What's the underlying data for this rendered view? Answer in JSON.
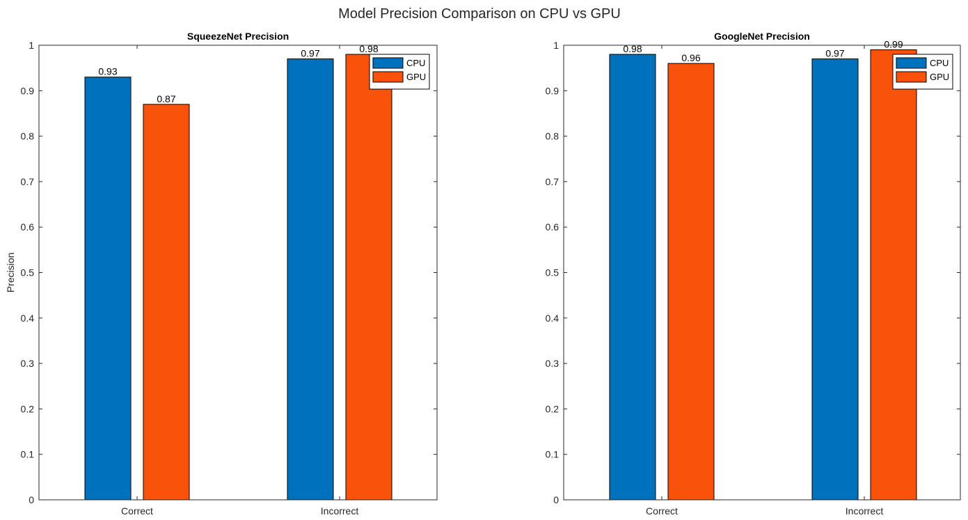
{
  "figure": {
    "title": "Model Precision Comparison on CPU vs GPU"
  },
  "colors": {
    "cpu": "#0072BD",
    "gpu": "#F8520B",
    "axis": "#262626"
  },
  "chart_data": [
    {
      "type": "bar",
      "title": "SqueezeNet Precision",
      "xlabel": "",
      "ylabel": "Precision",
      "categories": [
        "Correct",
        "Incorrect"
      ],
      "series": [
        {
          "name": "CPU",
          "values": [
            0.93,
            0.97
          ]
        },
        {
          "name": "GPU",
          "values": [
            0.87,
            0.98
          ]
        }
      ],
      "data_labels": [
        [
          "0.93",
          "0.97"
        ],
        [
          "0.87",
          "0.98"
        ]
      ],
      "ylim": [
        0,
        1
      ],
      "yticks": [
        0,
        0.1,
        0.2,
        0.3,
        0.4,
        0.5,
        0.6,
        0.7,
        0.8,
        0.9,
        1
      ],
      "ytick_labels": [
        "0",
        "0.1",
        "0.2",
        "0.3",
        "0.4",
        "0.5",
        "0.6",
        "0.7",
        "0.8",
        "0.9",
        "1"
      ],
      "legend": "top-right",
      "grid": false
    },
    {
      "type": "bar",
      "title": "GoogleNet Precision",
      "xlabel": "",
      "ylabel": "",
      "categories": [
        "Correct",
        "Incorrect"
      ],
      "series": [
        {
          "name": "CPU",
          "values": [
            0.98,
            0.97
          ]
        },
        {
          "name": "GPU",
          "values": [
            0.96,
            0.99
          ]
        }
      ],
      "data_labels": [
        [
          "0.98",
          "0.97"
        ],
        [
          "0.96",
          "0.99"
        ]
      ],
      "ylim": [
        0,
        1
      ],
      "yticks": [
        0,
        0.1,
        0.2,
        0.3,
        0.4,
        0.5,
        0.6,
        0.7,
        0.8,
        0.9,
        1
      ],
      "ytick_labels": [
        "0",
        "0.1",
        "0.2",
        "0.3",
        "0.4",
        "0.5",
        "0.6",
        "0.7",
        "0.8",
        "0.9",
        "1"
      ],
      "legend": "top-right",
      "grid": false
    }
  ]
}
